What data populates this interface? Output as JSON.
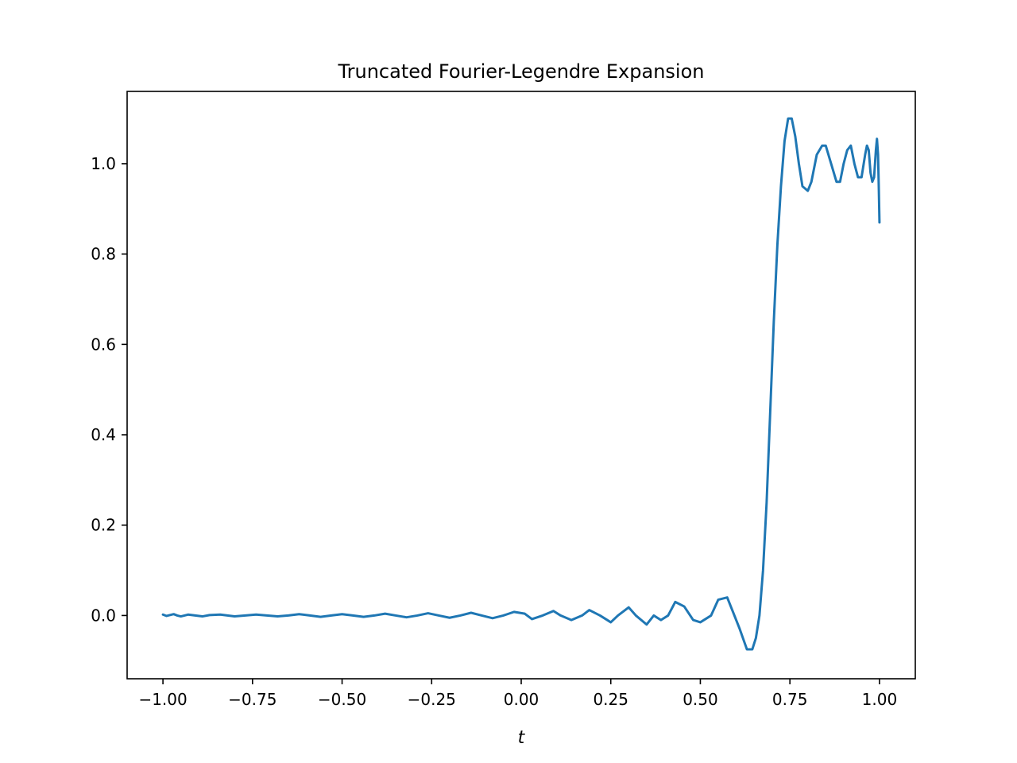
{
  "chart_data": {
    "type": "line",
    "title": "Truncated Fourier-Legendre Expansion",
    "xlabel": "t",
    "ylabel": "",
    "xlim": [
      -1.1,
      1.1
    ],
    "ylim": [
      -0.14,
      1.16
    ],
    "x_ticks": [
      -1.0,
      -0.75,
      -0.5,
      -0.25,
      0.0,
      0.25,
      0.5,
      0.75,
      1.0
    ],
    "x_tick_labels": [
      "−1.00",
      "−0.75",
      "−0.50",
      "−0.25",
      "0.00",
      "0.25",
      "0.50",
      "0.75",
      "1.00"
    ],
    "y_ticks": [
      0.0,
      0.2,
      0.4,
      0.6,
      0.8,
      1.0
    ],
    "y_tick_labels": [
      "0.0",
      "0.2",
      "0.4",
      "0.6",
      "0.8",
      "1.0"
    ],
    "grid": false,
    "legend": "none",
    "series": [
      {
        "color": "#1f77b4",
        "x": [
          -1.0,
          -0.99,
          -0.98,
          -0.97,
          -0.96,
          -0.95,
          -0.94,
          -0.93,
          -0.91,
          -0.89,
          -0.87,
          -0.84,
          -0.82,
          -0.8,
          -0.77,
          -0.74,
          -0.71,
          -0.68,
          -0.65,
          -0.62,
          -0.59,
          -0.56,
          -0.53,
          -0.5,
          -0.47,
          -0.44,
          -0.41,
          -0.38,
          -0.35,
          -0.32,
          -0.29,
          -0.26,
          -0.23,
          -0.2,
          -0.17,
          -0.14,
          -0.11,
          -0.08,
          -0.05,
          -0.02,
          0.01,
          0.03,
          0.06,
          0.09,
          0.11,
          0.14,
          0.17,
          0.19,
          0.22,
          0.25,
          0.27,
          0.3,
          0.32,
          0.35,
          0.37,
          0.39,
          0.41,
          0.43,
          0.455,
          0.48,
          0.5,
          0.53,
          0.55,
          0.575,
          0.59,
          0.61,
          0.63,
          0.645,
          0.655,
          0.665,
          0.675,
          0.685,
          0.695,
          0.705,
          0.715,
          0.725,
          0.735,
          0.745,
          0.755,
          0.765,
          0.775,
          0.785,
          0.8,
          0.81,
          0.825,
          0.84,
          0.85,
          0.865,
          0.88,
          0.89,
          0.9,
          0.91,
          0.92,
          0.93,
          0.94,
          0.95,
          0.96,
          0.965,
          0.97,
          0.975,
          0.98,
          0.985,
          0.99,
          0.993,
          0.996,
          0.998,
          1.0
        ],
        "y": [
          0.002,
          -0.001,
          0.001,
          0.003,
          0.0,
          -0.002,
          0.0,
          0.002,
          0.0,
          -0.002,
          0.001,
          0.002,
          0.0,
          -0.002,
          0.0,
          0.002,
          0.0,
          -0.002,
          0.0,
          0.003,
          0.0,
          -0.003,
          0.0,
          0.003,
          0.0,
          -0.003,
          0.0,
          0.004,
          0.0,
          -0.004,
          0.0,
          0.005,
          0.0,
          -0.005,
          0.0,
          0.006,
          0.0,
          -0.006,
          0.0,
          0.008,
          0.004,
          -0.008,
          0.0,
          0.01,
          0.0,
          -0.01,
          0.0,
          0.012,
          0.0,
          -0.015,
          0.0,
          0.018,
          0.0,
          -0.02,
          0.0,
          -0.01,
          0.0,
          0.03,
          0.02,
          -0.01,
          -0.015,
          0.0,
          0.035,
          0.04,
          0.01,
          -0.03,
          -0.075,
          -0.075,
          -0.05,
          0.0,
          0.1,
          0.25,
          0.45,
          0.65,
          0.82,
          0.95,
          1.05,
          1.1,
          1.1,
          1.06,
          1.0,
          0.95,
          0.94,
          0.96,
          1.02,
          1.04,
          1.04,
          1.0,
          0.96,
          0.96,
          1.0,
          1.03,
          1.04,
          1.0,
          0.97,
          0.97,
          1.02,
          1.04,
          1.03,
          0.98,
          0.96,
          0.97,
          1.03,
          1.055,
          1.02,
          0.95,
          0.87
        ]
      }
    ]
  }
}
